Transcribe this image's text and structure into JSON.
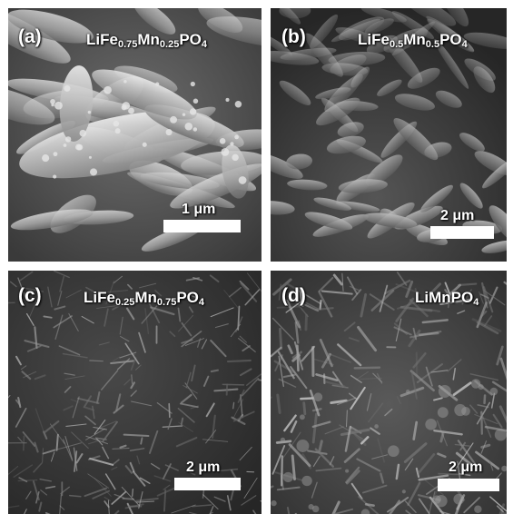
{
  "figure": {
    "panels": [
      {
        "id": "a",
        "label": "(a)",
        "composition": {
          "base": "LiFe",
          "fe_sub": "0.75",
          "mn": "Mn",
          "mn_sub": "0.25",
          "tail": "PO",
          "o_sub": "4"
        },
        "scale_bar_text": "1 μm",
        "morphology": "large-spindle-plates"
      },
      {
        "id": "b",
        "label": "(b)",
        "composition": {
          "base": "LiFe",
          "fe_sub": "0.5",
          "mn": "Mn",
          "mn_sub": "0.5",
          "tail": "PO",
          "o_sub": "4"
        },
        "scale_bar_text": "2 μm",
        "morphology": "spindle-particles"
      },
      {
        "id": "c",
        "label": "(c)",
        "composition": {
          "base": "LiFe",
          "fe_sub": "0.25",
          "mn": "Mn",
          "mn_sub": "0.75",
          "tail": "PO",
          "o_sub": "4"
        },
        "scale_bar_text": "2 μm",
        "morphology": "fine-needles"
      },
      {
        "id": "d",
        "label": "(d)",
        "composition_text": "LiMnPO",
        "composition_sub": "4",
        "scale_bar_text": "2 μm",
        "morphology": "nanorods"
      }
    ]
  }
}
